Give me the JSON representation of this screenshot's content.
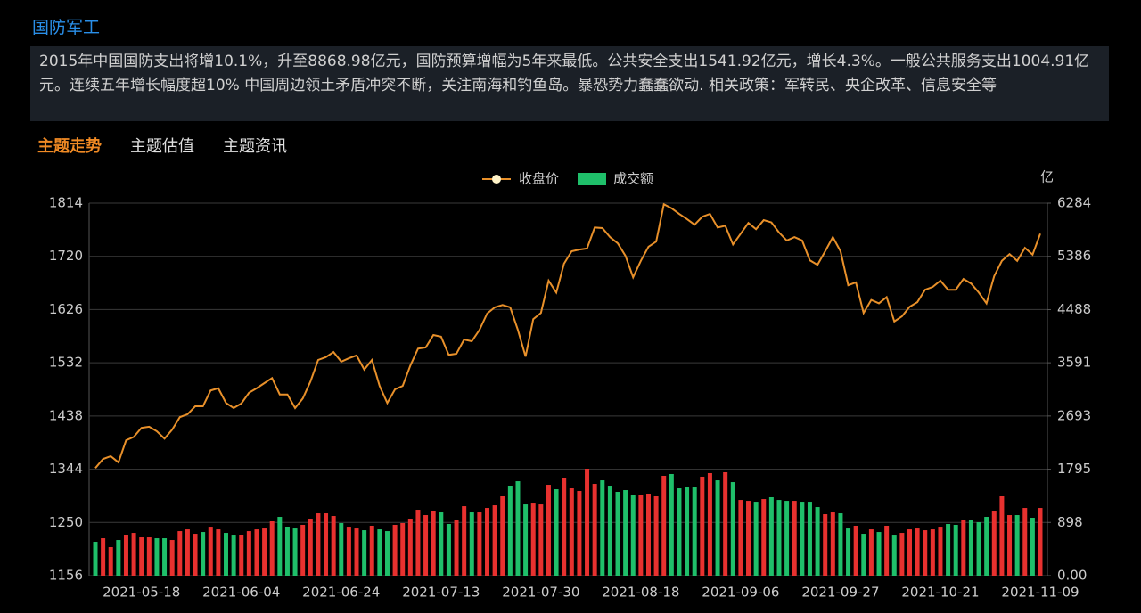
{
  "header": {
    "title": "国防军工",
    "description": "2015年中国国防支出将增10.1%，升至8868.98亿元，国防预算增幅为5年来最低。公共安全支出1541.92亿元，增长4.3%。一般公共服务支出1004.91亿元。连续五年增长幅度超10% 中国周边领土矛盾冲突不断，关注南海和钓鱼岛。暴恐势力蠢蠢欲动. 相关政策：军转民、央企改革、信息安全等"
  },
  "tabs": [
    "主题走势",
    "主题估值",
    "主题资讯"
  ],
  "chart_data": {
    "type": "combo",
    "y2_unit": "亿",
    "up_color": "#e8312f",
    "down_color": "#1fbf6a",
    "categories": [
      null,
      null,
      null,
      null,
      null,
      null,
      "2021-05-18",
      null,
      null,
      null,
      null,
      null,
      null,
      null,
      null,
      null,
      null,
      null,
      null,
      "2021-06-04",
      null,
      null,
      null,
      null,
      null,
      null,
      null,
      null,
      null,
      null,
      null,
      null,
      "2021-06-24",
      null,
      null,
      null,
      null,
      null,
      null,
      null,
      null,
      null,
      null,
      null,
      null,
      "2021-07-13",
      null,
      null,
      null,
      null,
      null,
      null,
      null,
      null,
      null,
      null,
      null,
      null,
      "2021-07-30",
      null,
      null,
      null,
      null,
      null,
      null,
      null,
      null,
      null,
      null,
      null,
      null,
      "2021-08-18",
      null,
      null,
      null,
      null,
      null,
      null,
      null,
      null,
      null,
      null,
      null,
      null,
      "2021-09-06",
      null,
      null,
      null,
      null,
      null,
      null,
      null,
      null,
      null,
      null,
      null,
      null,
      "2021-09-27",
      null,
      null,
      null,
      null,
      null,
      null,
      null,
      null,
      null,
      null,
      null,
      null,
      "2021-10-21",
      null,
      null,
      null,
      null,
      null,
      null,
      null,
      null,
      null,
      null,
      null,
      null,
      "2021-11-09"
    ],
    "series": [
      {
        "name": "收盘价",
        "type": "line",
        "color": "#e8902a",
        "values": [
          1346,
          1362,
          1367,
          1356,
          1395,
          1401,
          1417,
          1419,
          1411,
          1398,
          1414,
          1436,
          1441,
          1455,
          1455,
          1483,
          1487,
          1461,
          1452,
          1460,
          1479,
          1487,
          1496,
          1505,
          1476,
          1476,
          1452,
          1469,
          1499,
          1537,
          1542,
          1551,
          1534,
          1540,
          1545,
          1520,
          1537,
          1491,
          1461,
          1485,
          1491,
          1527,
          1557,
          1559,
          1581,
          1578,
          1546,
          1548,
          1573,
          1570,
          1590,
          1619,
          1630,
          1634,
          1630,
          1590,
          1543,
          1609,
          1620,
          1677,
          1656,
          1707,
          1729,
          1732,
          1734,
          1771,
          1770,
          1754,
          1743,
          1721,
          1683,
          1712,
          1737,
          1746,
          1812,
          1805,
          1795,
          1786,
          1776,
          1790,
          1795,
          1771,
          1774,
          1741,
          1760,
          1779,
          1768,
          1784,
          1780,
          1762,
          1748,
          1754,
          1748,
          1713,
          1705,
          1729,
          1754,
          1729,
          1669,
          1674,
          1620,
          1643,
          1637,
          1648,
          1605,
          1614,
          1631,
          1639,
          1661,
          1666,
          1677,
          1661,
          1661,
          1680,
          1672,
          1656,
          1637,
          1685,
          1712,
          1724,
          1712,
          1735,
          1723,
          1760
        ]
      },
      {
        "name": "成交额",
        "type": "bar",
        "axis": "y2",
        "color": "#1fbf6a",
        "values": [
          571,
          631,
          481,
          601,
          691,
          721,
          646,
          646,
          631,
          631,
          601,
          751,
          781,
          706,
          736,
          811,
          781,
          721,
          676,
          691,
          751,
          781,
          796,
          917,
          992,
          826,
          796,
          857,
          947,
          1052,
          1052,
          1007,
          887,
          811,
          796,
          766,
          842,
          781,
          751,
          857,
          887,
          947,
          1112,
          1022,
          1097,
          1067,
          872,
          932,
          1172,
          1067,
          1067,
          1142,
          1187,
          1338,
          1518,
          1593,
          1202,
          1217,
          1202,
          1533,
          1458,
          1653,
          1473,
          1428,
          1804,
          1548,
          1608,
          1503,
          1413,
          1443,
          1353,
          1353,
          1383,
          1338,
          1684,
          1714,
          1473,
          1488,
          1488,
          1669,
          1729,
          1608,
          1744,
          1578,
          1277,
          1262,
          1247,
          1292,
          1323,
          1277,
          1262,
          1262,
          1247,
          1247,
          1157,
          1037,
          1067,
          1052,
          796,
          842,
          706,
          781,
          736,
          842,
          676,
          721,
          781,
          796,
          766,
          781,
          811,
          872,
          857,
          932,
          932,
          902,
          992,
          1082,
          1338,
          1022,
          1022,
          1142,
          977,
          1142
        ]
      }
    ],
    "ylim": [
      1156,
      1814
    ],
    "yticks": [
      1156,
      1250,
      1344,
      1438,
      1532,
      1626,
      1720,
      1814
    ],
    "y2lim": [
      0,
      6284
    ],
    "y2ticks": [
      {
        "value": 0,
        "label": "0.00"
      },
      898,
      1795,
      2693,
      3591,
      4488,
      5386,
      6284
    ],
    "grid": true
  }
}
